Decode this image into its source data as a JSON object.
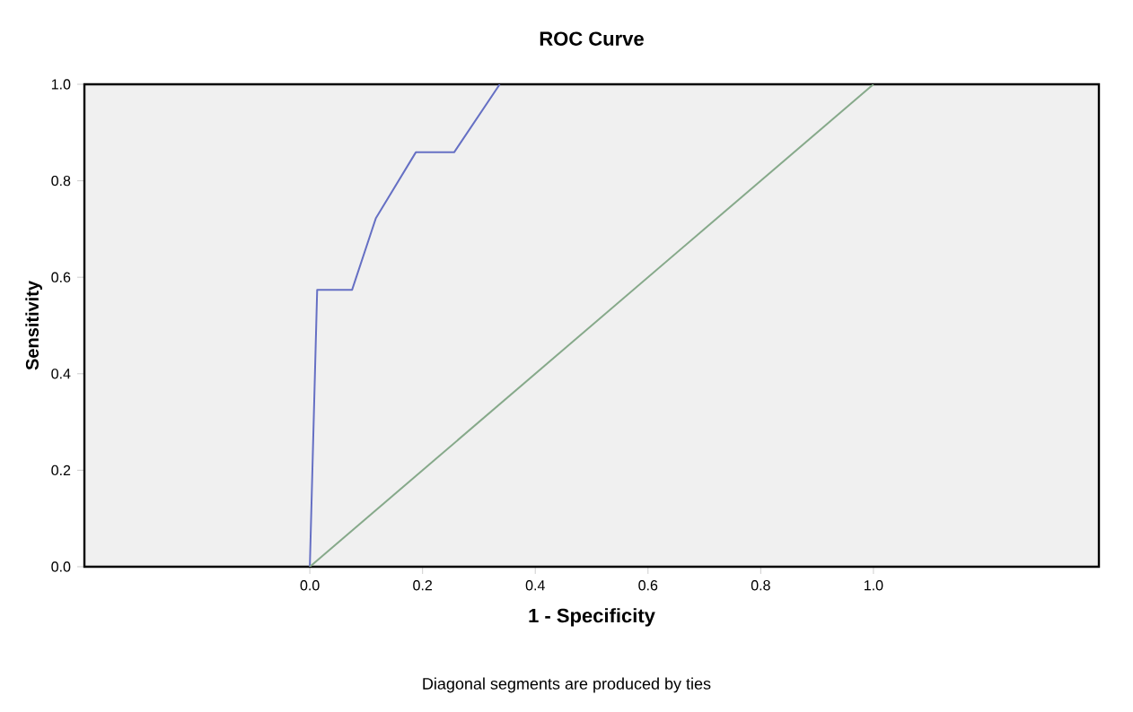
{
  "chart_data": {
    "type": "line",
    "title": "ROC Curve",
    "xlabel": "1 - Specificity",
    "ylabel": "Sensitivity",
    "annotations": [
      "Diagonal segments are produced by ties"
    ],
    "xlim": [
      -0.4,
      1.4
    ],
    "ylim": [
      0,
      1
    ],
    "xticks": [
      {
        "value": 0,
        "label": "0.0"
      },
      {
        "value": 0.2,
        "label": "0.2"
      },
      {
        "value": 0.4,
        "label": "0.4"
      },
      {
        "value": 0.6,
        "label": "0.6"
      },
      {
        "value": 0.8,
        "label": "0.8"
      },
      {
        "value": 1,
        "label": "1.0"
      }
    ],
    "yticks": [
      {
        "value": 0,
        "label": "0.0"
      },
      {
        "value": 0.2,
        "label": "0.2"
      },
      {
        "value": 0.4,
        "label": "0.4"
      },
      {
        "value": 0.6,
        "label": "0.6"
      },
      {
        "value": 0.8,
        "label": "0.8"
      },
      {
        "value": 1,
        "label": "1.0"
      }
    ],
    "series": [
      {
        "color": "#6670c4",
        "x": [
          0,
          0.013,
          0.075,
          0.117,
          0.188,
          0.256,
          0.337
        ],
        "values": [
          0,
          0.574,
          0.574,
          0.722,
          0.859,
          0.859,
          1
        ]
      },
      {
        "color": "#86a98a",
        "x": [
          0,
          1
        ],
        "values": [
          0,
          1
        ]
      }
    ]
  }
}
